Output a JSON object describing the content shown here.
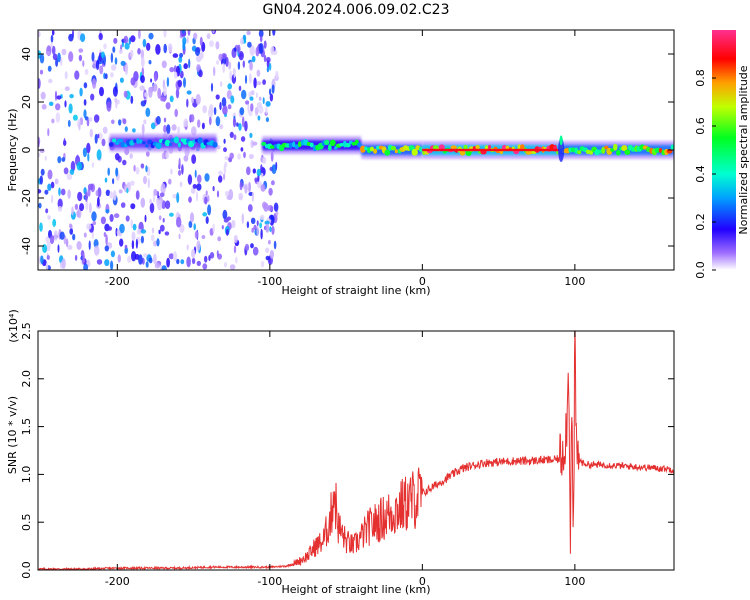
{
  "title": "GN04.2024.006.09.02.C23",
  "colors": {
    "signal_line": "#e53030",
    "spectrogram_low": "#ffffff",
    "spectrogram_scale": [
      "#ffffff",
      "#d8c8ff",
      "#6000ff",
      "#0030ff",
      "#00e0ff",
      "#00ff40",
      "#e0ff00",
      "#ff8000",
      "#ff0000",
      "#ff40a0"
    ]
  },
  "chart_data": [
    {
      "type": "heatmap",
      "title": "",
      "xlabel": "Height of straight line (km)",
      "ylabel": "Frequency (Hz)",
      "xlim": [
        -252,
        165
      ],
      "ylim": [
        -50,
        50
      ],
      "xticks": [
        -200,
        -100,
        0,
        100
      ],
      "xtick_labels": [
        "-200",
        "-100",
        "0",
        "100"
      ],
      "yticks": [
        -40,
        -20,
        0,
        20,
        40
      ],
      "ytick_labels": [
        "-40",
        "-20",
        "0",
        "20",
        "40"
      ],
      "colorbar": {
        "label": "Normalized spectral amplitude",
        "range": [
          0,
          1
        ],
        "ticks": [
          0.0,
          0.2,
          0.4,
          0.6,
          0.8
        ],
        "tick_labels": [
          "0.0",
          "0.2",
          "0.4",
          "0.6",
          "0.8"
        ]
      },
      "features": [
        {
          "x_from": -252,
          "x_to": -95,
          "pattern": "broadband noise",
          "amplitude": 0.15
        },
        {
          "x_from": -205,
          "x_to": -135,
          "center_hz": 3,
          "amplitude": 0.35
        },
        {
          "x_from": -105,
          "x_to": -40,
          "center_hz": 2,
          "amplitude": 0.5
        },
        {
          "x_from": -40,
          "x_to": 0,
          "center_hz": 0,
          "amplitude": 0.7
        },
        {
          "x_from": 0,
          "x_to": 90,
          "center_hz": 0,
          "amplitude": 0.95
        },
        {
          "x_from": 90,
          "x_to": 165,
          "center_hz": 0,
          "amplitude": 0.75
        }
      ]
    },
    {
      "type": "line",
      "title": "",
      "xlabel": "Height of straight line (km)",
      "ylabel": "SNR (10 * v/v)",
      "scale_note": "(x10⁴)",
      "xlim": [
        -252,
        165
      ],
      "ylim": [
        0,
        2.5
      ],
      "xticks": [
        -200,
        -100,
        0,
        100
      ],
      "xtick_labels": [
        "-200",
        "-100",
        "0",
        "100"
      ],
      "yticks": [
        0.0,
        0.5,
        1.0,
        1.5,
        2.0,
        2.5
      ],
      "ytick_labels": [
        "0.0",
        "0.5",
        "1.0",
        "1.5",
        "2.0",
        "2.5"
      ],
      "series": [
        {
          "color": "#e53030",
          "x": [
            -252,
            -240,
            -220,
            -200,
            -180,
            -160,
            -140,
            -120,
            -100,
            -90,
            -85,
            -80,
            -75,
            -70,
            -65,
            -60,
            -58,
            -55,
            -50,
            -45,
            -40,
            -35,
            -30,
            -25,
            -20,
            -15,
            -10,
            -5,
            0,
            5,
            10,
            15,
            20,
            25,
            30,
            35,
            40,
            50,
            60,
            70,
            80,
            85,
            90,
            93,
            95,
            96,
            97,
            98,
            99,
            100,
            101,
            103,
            105,
            110,
            120,
            130,
            140,
            150,
            160,
            165
          ],
          "y": [
            0.01,
            0.01,
            0.01,
            0.02,
            0.02,
            0.02,
            0.03,
            0.03,
            0.03,
            0.04,
            0.06,
            0.1,
            0.15,
            0.25,
            0.3,
            0.55,
            0.85,
            0.45,
            0.3,
            0.25,
            0.35,
            0.45,
            0.5,
            0.55,
            0.6,
            0.65,
            0.7,
            0.75,
            0.8,
            0.85,
            0.9,
            0.95,
            1.0,
            1.05,
            1.08,
            1.1,
            1.12,
            1.13,
            1.14,
            1.14,
            1.15,
            1.15,
            1.16,
            1.3,
            1.6,
            2.2,
            0.3,
            1.8,
            0.1,
            2.5,
            1.2,
            1.15,
            1.12,
            1.1,
            1.1,
            1.09,
            1.08,
            1.07,
            1.06,
            1.05
          ]
        }
      ]
    }
  ]
}
